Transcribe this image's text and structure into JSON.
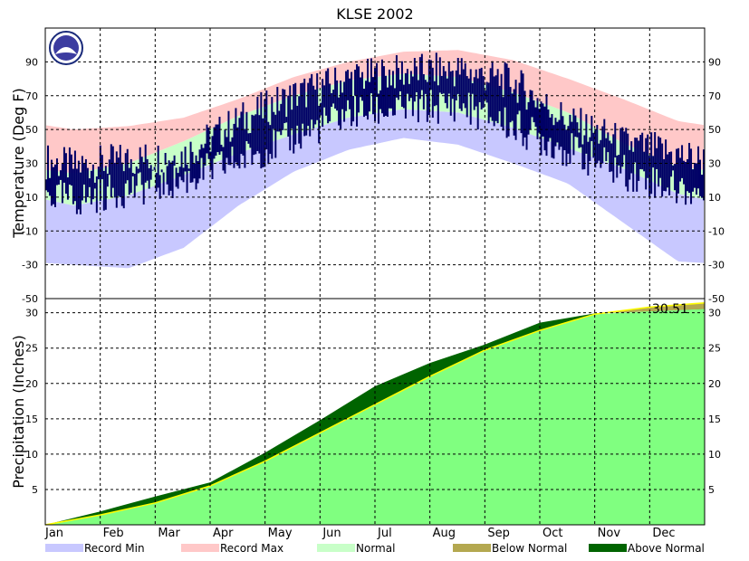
{
  "chart_data": {
    "type": "area",
    "title": "KLSE 2002",
    "months": [
      "Jan",
      "Feb",
      "Mar",
      "Apr",
      "May",
      "Jun",
      "Jul",
      "Aug",
      "Sep",
      "Oct",
      "Nov",
      "Dec"
    ],
    "temperature": {
      "ylabel": "Temperature (Deg F)",
      "ylim": [
        -50,
        110
      ],
      "ticks": [
        90,
        70,
        50,
        30,
        10,
        -10,
        -30,
        -50
      ],
      "record_max": [
        50,
        52,
        57,
        68,
        81,
        90,
        96,
        97,
        91,
        80,
        68,
        55
      ],
      "normal_max": [
        24,
        30,
        43,
        58,
        70,
        79,
        83,
        81,
        72,
        60,
        42,
        28
      ],
      "normal_min": [
        5,
        11,
        23,
        36,
        47,
        57,
        62,
        60,
        51,
        39,
        27,
        12
      ],
      "record_min": [
        -30,
        -32,
        -20,
        5,
        25,
        38,
        45,
        41,
        30,
        18,
        -5,
        -28
      ],
      "observed_high": [
        28,
        32,
        35,
        55,
        70,
        80,
        84,
        85,
        78,
        55,
        42,
        35
      ],
      "observed_low": [
        8,
        15,
        20,
        32,
        45,
        60,
        62,
        65,
        52,
        38,
        25,
        15
      ]
    },
    "precipitation": {
      "ylabel": "Precipitation (Inches)",
      "ylim": [
        0,
        32
      ],
      "ticks": [
        30,
        25,
        20,
        15,
        10,
        5
      ],
      "normal": [
        0,
        1.4,
        3.1,
        5.5,
        9.0,
        13.0,
        17.0,
        21.0,
        24.7,
        27.5,
        29.8,
        30.8,
        31.4
      ],
      "observed": [
        0,
        1.9,
        4.0,
        6.0,
        10.2,
        14.8,
        19.6,
        22.9,
        25.5,
        28.6,
        29.9,
        30.2,
        30.51
      ],
      "final_total_label": "30.51"
    },
    "legend": [
      {
        "label": "Record Min",
        "color": "#c8c8ff"
      },
      {
        "label": "Record Max",
        "color": "#ffc8c8"
      },
      {
        "label": "Normal",
        "color": "#c8ffc8"
      },
      {
        "label": "Below Normal",
        "color": "#b4a850"
      },
      {
        "label": "Above Normal",
        "color": "#006400"
      }
    ],
    "colors": {
      "observed": "#000066",
      "precip_fill": "#80ff80",
      "normal_line": "#ffff00"
    }
  }
}
